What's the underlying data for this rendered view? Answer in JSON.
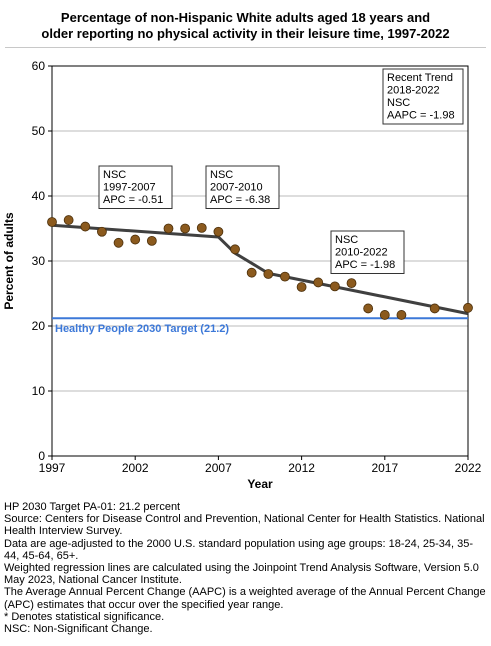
{
  "title_lines": [
    "Percentage of non-Hispanic White adults aged 18 years and",
    "older reporting no physical activity in their leisure time, 1997-2022"
  ],
  "chart_data": {
    "type": "scatter",
    "xlabel": "Year",
    "ylabel": "Percent of adults",
    "xlim": [
      1997,
      2022
    ],
    "ylim": [
      0,
      60
    ],
    "xticks": [
      1997,
      2002,
      2007,
      2012,
      2017,
      2022
    ],
    "yticks": [
      0,
      10,
      20,
      30,
      40,
      50,
      60
    ],
    "grid": true,
    "observed": {
      "x": [
        1997,
        1998,
        1999,
        2000,
        2001,
        2002,
        2003,
        2004,
        2005,
        2006,
        2007,
        2008,
        2009,
        2010,
        2011,
        2012,
        2013,
        2014,
        2015,
        2016,
        2017,
        2018,
        2020,
        2022
      ],
      "y": [
        36.0,
        36.3,
        35.3,
        34.5,
        32.8,
        33.3,
        33.1,
        35.0,
        35.0,
        35.1,
        34.5,
        31.8,
        28.2,
        28.0,
        27.6,
        26.0,
        26.7,
        26.1,
        26.6,
        22.7,
        21.7,
        21.7,
        22.7,
        22.8
      ]
    },
    "trend": {
      "x": [
        1997,
        2007,
        2008,
        2010,
        2022
      ],
      "y": [
        35.5,
        33.7,
        31.2,
        28.1,
        21.9
      ]
    },
    "target": {
      "value": 21.2,
      "label": "Healthy People 2030 Target (21.2)"
    },
    "annotations": [
      {
        "lines": [
          "NSC",
          "1997-2007",
          "APC = -0.51"
        ]
      },
      {
        "lines": [
          "NSC",
          "2007-2010",
          "APC = -6.38"
        ]
      },
      {
        "lines": [
          "NSC",
          "2010-2022",
          "APC = -1.98"
        ]
      },
      {
        "lines": [
          "Recent Trend",
          "2018-2022",
          "NSC",
          "AAPC = -1.98"
        ]
      }
    ],
    "colors": {
      "point": "#8b5a1e",
      "point_edge": "#4a2e0a",
      "trend": "#404040",
      "target": "#3c78d8",
      "grid": "#bbbbbb"
    }
  },
  "notes": [
    "HP 2030 Target PA-01: 21.2 percent",
    "Source: Centers for Disease Control and Prevention, National Center for Health Statistics. National Health Interview Survey.",
    "Data are age-adjusted to the 2000 U.S. standard population using age groups: 18-24, 25-34, 35-44, 45-64, 65+.",
    "Weighted regression lines are calculated using the Joinpoint Trend Analysis Software, Version 5.0 May 2023, National Cancer Institute.",
    "The Average Annual Percent Change (AAPC) is a weighted average of the Annual Percent Change (APC) estimates that occur over the specified year range.",
    "* Denotes statistical significance.",
    "NSC: Non-Significant Change."
  ]
}
